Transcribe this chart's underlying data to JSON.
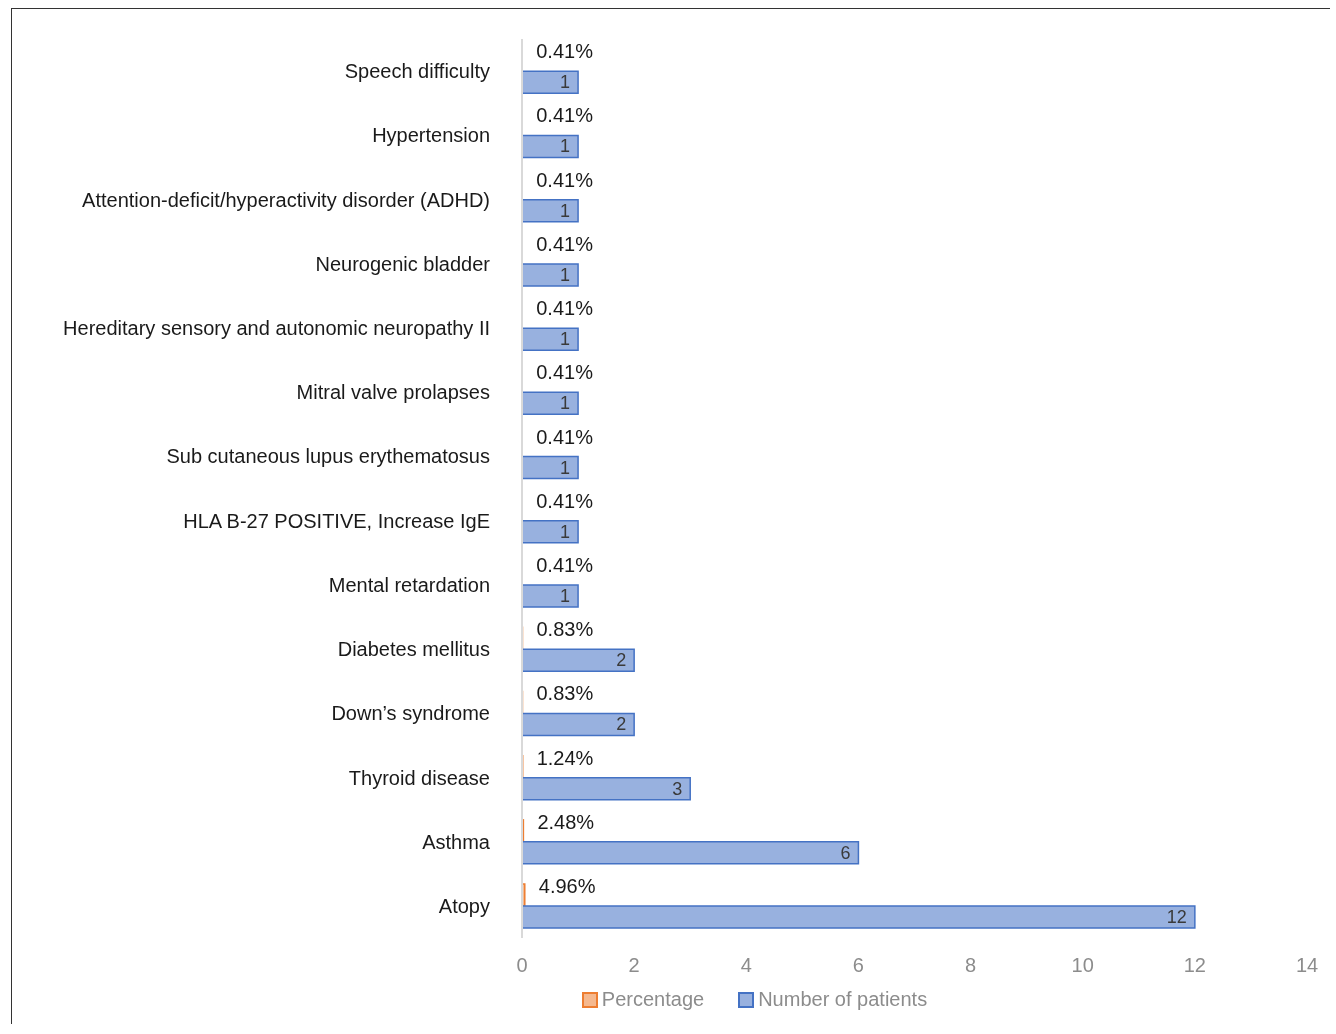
{
  "chart_data": {
    "type": "bar",
    "orientation": "horizontal",
    "categories": [
      "Speech difficulty",
      "Hypertension",
      "Attention-deficit/hyperactivity disorder (ADHD)",
      "Neurogenic bladder",
      "Hereditary sensory and autonomic neuropathy II",
      "Mitral valve prolapses",
      "Sub cutaneous lupus erythematosus",
      "HLA B-27 POSITIVE, Increase IgE",
      "Mental retardation",
      "Diabetes mellitus",
      "Down’s syndrome",
      "Thyroid disease",
      "Asthma",
      "Atopy"
    ],
    "series": [
      {
        "name": "Percentage",
        "color": "#ed7d31",
        "values": [
          0.0041,
          0.0041,
          0.0041,
          0.0041,
          0.0041,
          0.0041,
          0.0041,
          0.0041,
          0.0041,
          0.0083,
          0.0083,
          0.0124,
          0.0248,
          0.0496
        ],
        "value_labels": [
          "0.41%",
          "0.41%",
          "0.41%",
          "0.41%",
          "0.41%",
          "0.41%",
          "0.41%",
          "0.41%",
          "0.41%",
          "0.83%",
          "0.83%",
          "1.24%",
          "2.48%",
          "4.96%"
        ]
      },
      {
        "name": "Number of patients",
        "color": "#4472c4",
        "values": [
          1,
          1,
          1,
          1,
          1,
          1,
          1,
          1,
          1,
          2,
          2,
          3,
          6,
          12
        ],
        "value_labels": [
          "1",
          "1",
          "1",
          "1",
          "1",
          "1",
          "1",
          "1",
          "1",
          "2",
          "2",
          "3",
          "6",
          "12"
        ]
      }
    ],
    "xlim": [
      0,
      14
    ],
    "xticks": [
      0,
      2,
      4,
      6,
      8,
      10,
      12,
      14
    ],
    "grid": false,
    "legend": "bottom"
  }
}
